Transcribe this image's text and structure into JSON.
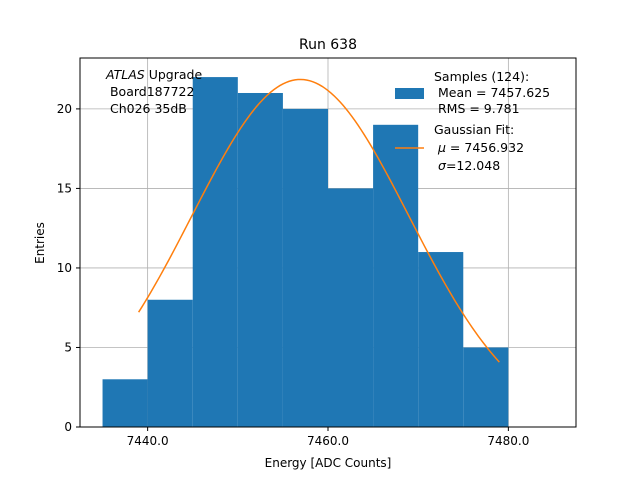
{
  "chart_data": {
    "type": "bar",
    "title": "Run 638",
    "xlabel": "Energy [ADC Counts]",
    "ylabel": "Entries",
    "xlim": [
      7432.5,
      7487.5
    ],
    "ylim": [
      0,
      23.2
    ],
    "x_ticks": [
      7440.0,
      7460.0,
      7480.0
    ],
    "x_tick_labels": [
      "7440.0",
      "7460.0",
      "7480.0"
    ],
    "y_ticks": [
      0,
      5,
      10,
      15,
      20
    ],
    "y_tick_labels": [
      "0",
      "5",
      "10",
      "15",
      "20"
    ],
    "grid": true,
    "bin_edges": [
      7435,
      7440,
      7445,
      7450,
      7455,
      7460,
      7465,
      7470,
      7475,
      7480
    ],
    "values": [
      3,
      8,
      22,
      21,
      20,
      15,
      19,
      11,
      5
    ],
    "bar_color": "#1f77b4",
    "fit": {
      "mu": 7456.932,
      "sigma": 12.048,
      "amplitude": 21.85,
      "x_range": [
        7439,
        7479
      ],
      "color": "#ff7f0e"
    },
    "annotation": {
      "italic": "ATLAS",
      "rest": " Upgrade",
      "line2": " Board187722",
      "line3": " Ch026 35dB"
    },
    "legend": {
      "placement": "top-right",
      "samples_line1": "Samples (124):",
      "samples_line2": " Mean = 7457.625",
      "samples_line3": " RMS = 9.781",
      "fit_line1": "Gaussian Fit:",
      "fit_mu_symbol": "μ",
      "fit_mu_value": " = 7456.932",
      "fit_sigma_symbol": "σ",
      "fit_sigma_value": "=12.048"
    }
  }
}
